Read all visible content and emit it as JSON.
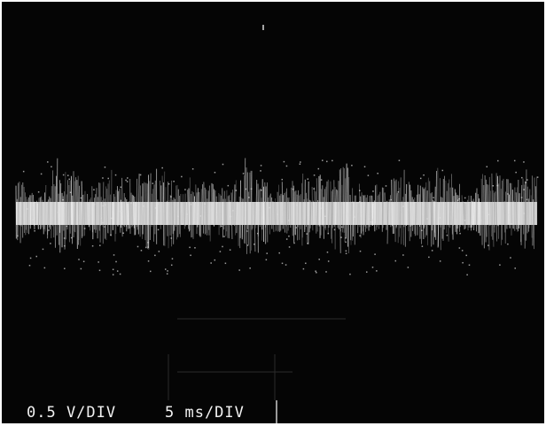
{
  "scale_readout": {
    "vertical": "0.5 V/DIV",
    "horizontal": "5 ms/DIV"
  }
}
